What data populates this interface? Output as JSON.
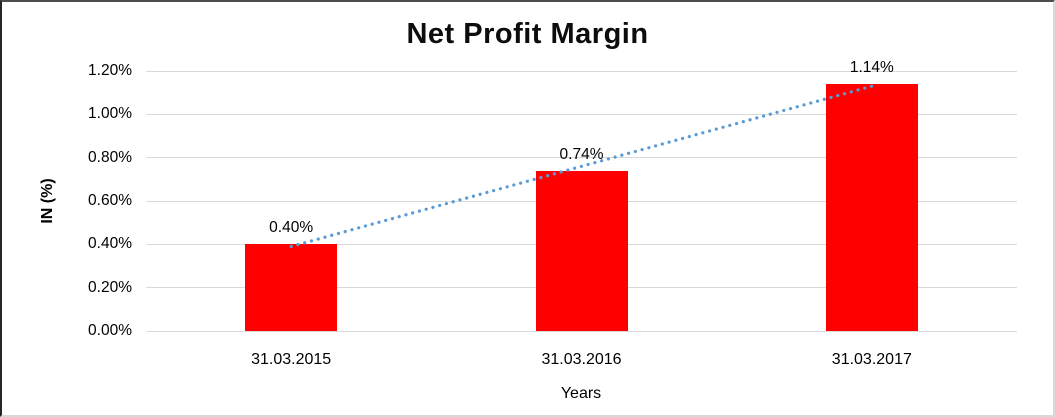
{
  "chart_data": {
    "type": "bar",
    "title": "Net Profit Margin",
    "xlabel": "Years",
    "ylabel": "IN (%)",
    "categories": [
      "31.03.2015",
      "31.03.2016",
      "31.03.2017"
    ],
    "values": [
      0.4,
      0.74,
      1.14
    ],
    "data_labels": [
      "0.40%",
      "0.74%",
      "1.14%"
    ],
    "ylim": [
      0,
      1.2
    ],
    "ytick_step": 0.2,
    "ytick_labels": [
      "0.00%",
      "0.20%",
      "0.40%",
      "0.60%",
      "0.80%",
      "1.00%",
      "1.20%"
    ],
    "grid": true,
    "legend": "none",
    "bar_color": "#FF0000",
    "gridline_color": "#D9D9D9",
    "text_color": "#000000",
    "background_color": "#FFFFFF",
    "trendline": {
      "type": "linear",
      "style": "dotted",
      "color": "#5B9BD5",
      "start_value": 0.39,
      "end_value": 1.13
    }
  }
}
